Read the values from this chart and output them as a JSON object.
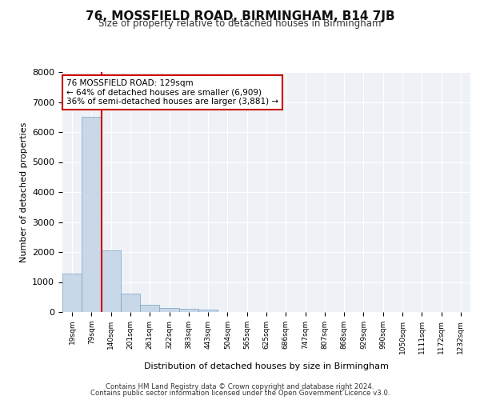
{
  "title_line1": "76, MOSSFIELD ROAD, BIRMINGHAM, B14 7JB",
  "title_line2": "Size of property relative to detached houses in Birmingham",
  "xlabel": "Distribution of detached houses by size in Birmingham",
  "ylabel": "Number of detached properties",
  "footnote1": "Contains HM Land Registry data © Crown copyright and database right 2024.",
  "footnote2": "Contains public sector information licensed under the Open Government Licence v3.0.",
  "annotation_title": "76 MOSSFIELD ROAD: 129sqm",
  "annotation_line2": "← 64% of detached houses are smaller (6,909)",
  "annotation_line3": "36% of semi-detached houses are larger (3,881) →",
  "property_size_sqm": 129,
  "bar_color": "#c8d8e8",
  "bar_edge_color": "#7aa0c0",
  "marker_line_color": "#cc0000",
  "annotation_box_color": "#cc0000",
  "background_color": "#eef2f7",
  "grid_color": "#ffffff",
  "categories": [
    "19sqm",
    "79sqm",
    "140sqm",
    "201sqm",
    "261sqm",
    "322sqm",
    "383sqm",
    "443sqm",
    "504sqm",
    "565sqm",
    "625sqm",
    "686sqm",
    "747sqm",
    "807sqm",
    "868sqm",
    "929sqm",
    "990sqm",
    "1050sqm",
    "1111sqm",
    "1172sqm",
    "1232sqm"
  ],
  "values": [
    1290,
    6500,
    2060,
    620,
    250,
    130,
    100,
    70,
    0,
    0,
    0,
    0,
    0,
    0,
    0,
    0,
    0,
    0,
    0,
    0,
    0
  ],
  "ylim": [
    0,
    8000
  ],
  "yticks": [
    0,
    1000,
    2000,
    3000,
    4000,
    5000,
    6000,
    7000,
    8000
  ]
}
